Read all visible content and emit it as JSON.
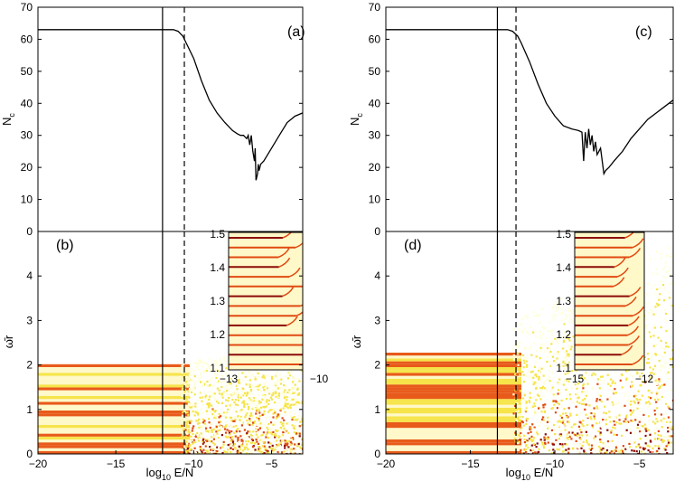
{
  "chart_data": [
    {
      "panel": "(a)",
      "type": "line",
      "ylabel": "N",
      "ylabel_sub": "c",
      "xlim": [
        -20,
        -3
      ],
      "ylim": [
        0,
        70
      ],
      "yticks": [
        0,
        10,
        20,
        30,
        40,
        50,
        60,
        70
      ],
      "vlines": {
        "solid": -12.0,
        "dashed": -10.6
      },
      "series": [
        {
          "name": "N_c",
          "x": [
            -20,
            -12,
            -11.3,
            -11.0,
            -10.7,
            -10.4,
            -10.0,
            -9.5,
            -9.0,
            -8.5,
            -8.0,
            -7.5,
            -7.2,
            -7.0,
            -6.8,
            -6.6,
            -6.5,
            -6.4,
            -6.3,
            -6.2,
            -6.1,
            -6.05,
            -6.0,
            -5.95,
            -5.9,
            -5.85,
            -5.8,
            -5.7,
            -5.5,
            -5.0,
            -4.5,
            -4.0,
            -3.5,
            -3.0
          ],
          "y": [
            63,
            63,
            63,
            62.5,
            61,
            58,
            54,
            47,
            41,
            37,
            34,
            31.5,
            30.5,
            30,
            30,
            29,
            30,
            27,
            30,
            25,
            22,
            26,
            16,
            17,
            18,
            21,
            19,
            21,
            22,
            26,
            30,
            34,
            36,
            37
          ]
        }
      ]
    },
    {
      "panel": "(b)",
      "type": "heatmap",
      "ylabel": "ω̄r",
      "xlabel": "log",
      "xlabel_sub": "10",
      "xlabel_tail": " E/N",
      "xlim": [
        -20,
        -3
      ],
      "ylim": [
        0,
        5
      ],
      "xticks": [
        -20,
        -15,
        -10,
        -5
      ],
      "xtick_labels": [
        "−20",
        "−15",
        "−10",
        "−5"
      ],
      "yticks": [
        0,
        1,
        2,
        3,
        4
      ],
      "vlines": {
        "solid": -12.0,
        "dashed": -10.6
      },
      "band_ymax": 2.05,
      "cloud_ymax": 2.1,
      "inset": {
        "xlim": [
          -13,
          -10
        ],
        "ylim": [
          1.1,
          1.5
        ],
        "xticks": [
          -13,
          -10
        ],
        "xtick_labels": [
          "−13",
          "−10"
        ],
        "yticks": [
          1.1,
          1.2,
          1.3,
          1.4,
          1.5
        ],
        "ytick_labels": [
          "1.1",
          "1.2",
          "1.3",
          "1.4",
          "1.5"
        ]
      }
    },
    {
      "panel": "(c)",
      "type": "line",
      "ylabel": "N",
      "ylabel_sub": "c",
      "xlim": [
        -20,
        -3
      ],
      "ylim": [
        0,
        70
      ],
      "yticks": [
        0,
        10,
        20,
        30,
        40,
        50,
        60,
        70
      ],
      "vlines": {
        "solid": -13.4,
        "dashed": -12.3
      },
      "series": [
        {
          "name": "N_c",
          "x": [
            -20,
            -13.4,
            -12.8,
            -12.5,
            -12.2,
            -12.0,
            -11.5,
            -11.0,
            -10.5,
            -10.0,
            -9.5,
            -9.0,
            -8.6,
            -8.4,
            -8.3,
            -8.2,
            -8.1,
            -8.0,
            -7.9,
            -7.8,
            -7.7,
            -7.6,
            -7.5,
            -7.3,
            -7.1,
            -7.0,
            -6.8,
            -6.5,
            -6.0,
            -5.5,
            -5.0,
            -4.5,
            -4.0,
            -3.5,
            -3.0
          ],
          "y": [
            63,
            63,
            63,
            62.5,
            61,
            59,
            53,
            46,
            40,
            36,
            33,
            32,
            31.5,
            31,
            22,
            31,
            26,
            32,
            27,
            30,
            25,
            28,
            24,
            26,
            18,
            19,
            20,
            22,
            25,
            29,
            32,
            35,
            37,
            39,
            41
          ]
        }
      ]
    },
    {
      "panel": "(d)",
      "type": "heatmap",
      "ylabel": "ω̄r",
      "xlabel": "log",
      "xlabel_sub": "10",
      "xlabel_tail": " E/N",
      "xlim": [
        -20,
        -3
      ],
      "ylim": [
        0,
        5
      ],
      "xticks": [
        -20,
        -15,
        -10,
        -5
      ],
      "xtick_labels": [
        "−20",
        "−15",
        "−10",
        "−5"
      ],
      "yticks": [
        0,
        1,
        2,
        3,
        4
      ],
      "vlines": {
        "solid": -13.4,
        "dashed": -12.3
      },
      "band_ymax": 2.3,
      "cloud_ymax": 3.0,
      "inset": {
        "xlim": [
          -15,
          -12
        ],
        "ylim": [
          1.1,
          1.5
        ],
        "xticks": [
          -15,
          -12
        ],
        "xtick_labels": [
          "−15",
          "−12"
        ],
        "yticks": [
          1.1,
          1.2,
          1.3,
          1.4,
          1.5
        ],
        "ytick_labels": [
          "1.1",
          "1.2",
          "1.3",
          "1.4",
          "1.5"
        ]
      }
    }
  ],
  "colors": {
    "axis": "#000000",
    "line": "#000000",
    "heat_low": "#ffffdc",
    "heat_mid": "#f6e44a",
    "heat_high": "#e04a12",
    "heat_dark": "#8c0c08",
    "band_red": "#e85a1a",
    "band_pale": "#fff8c8"
  }
}
